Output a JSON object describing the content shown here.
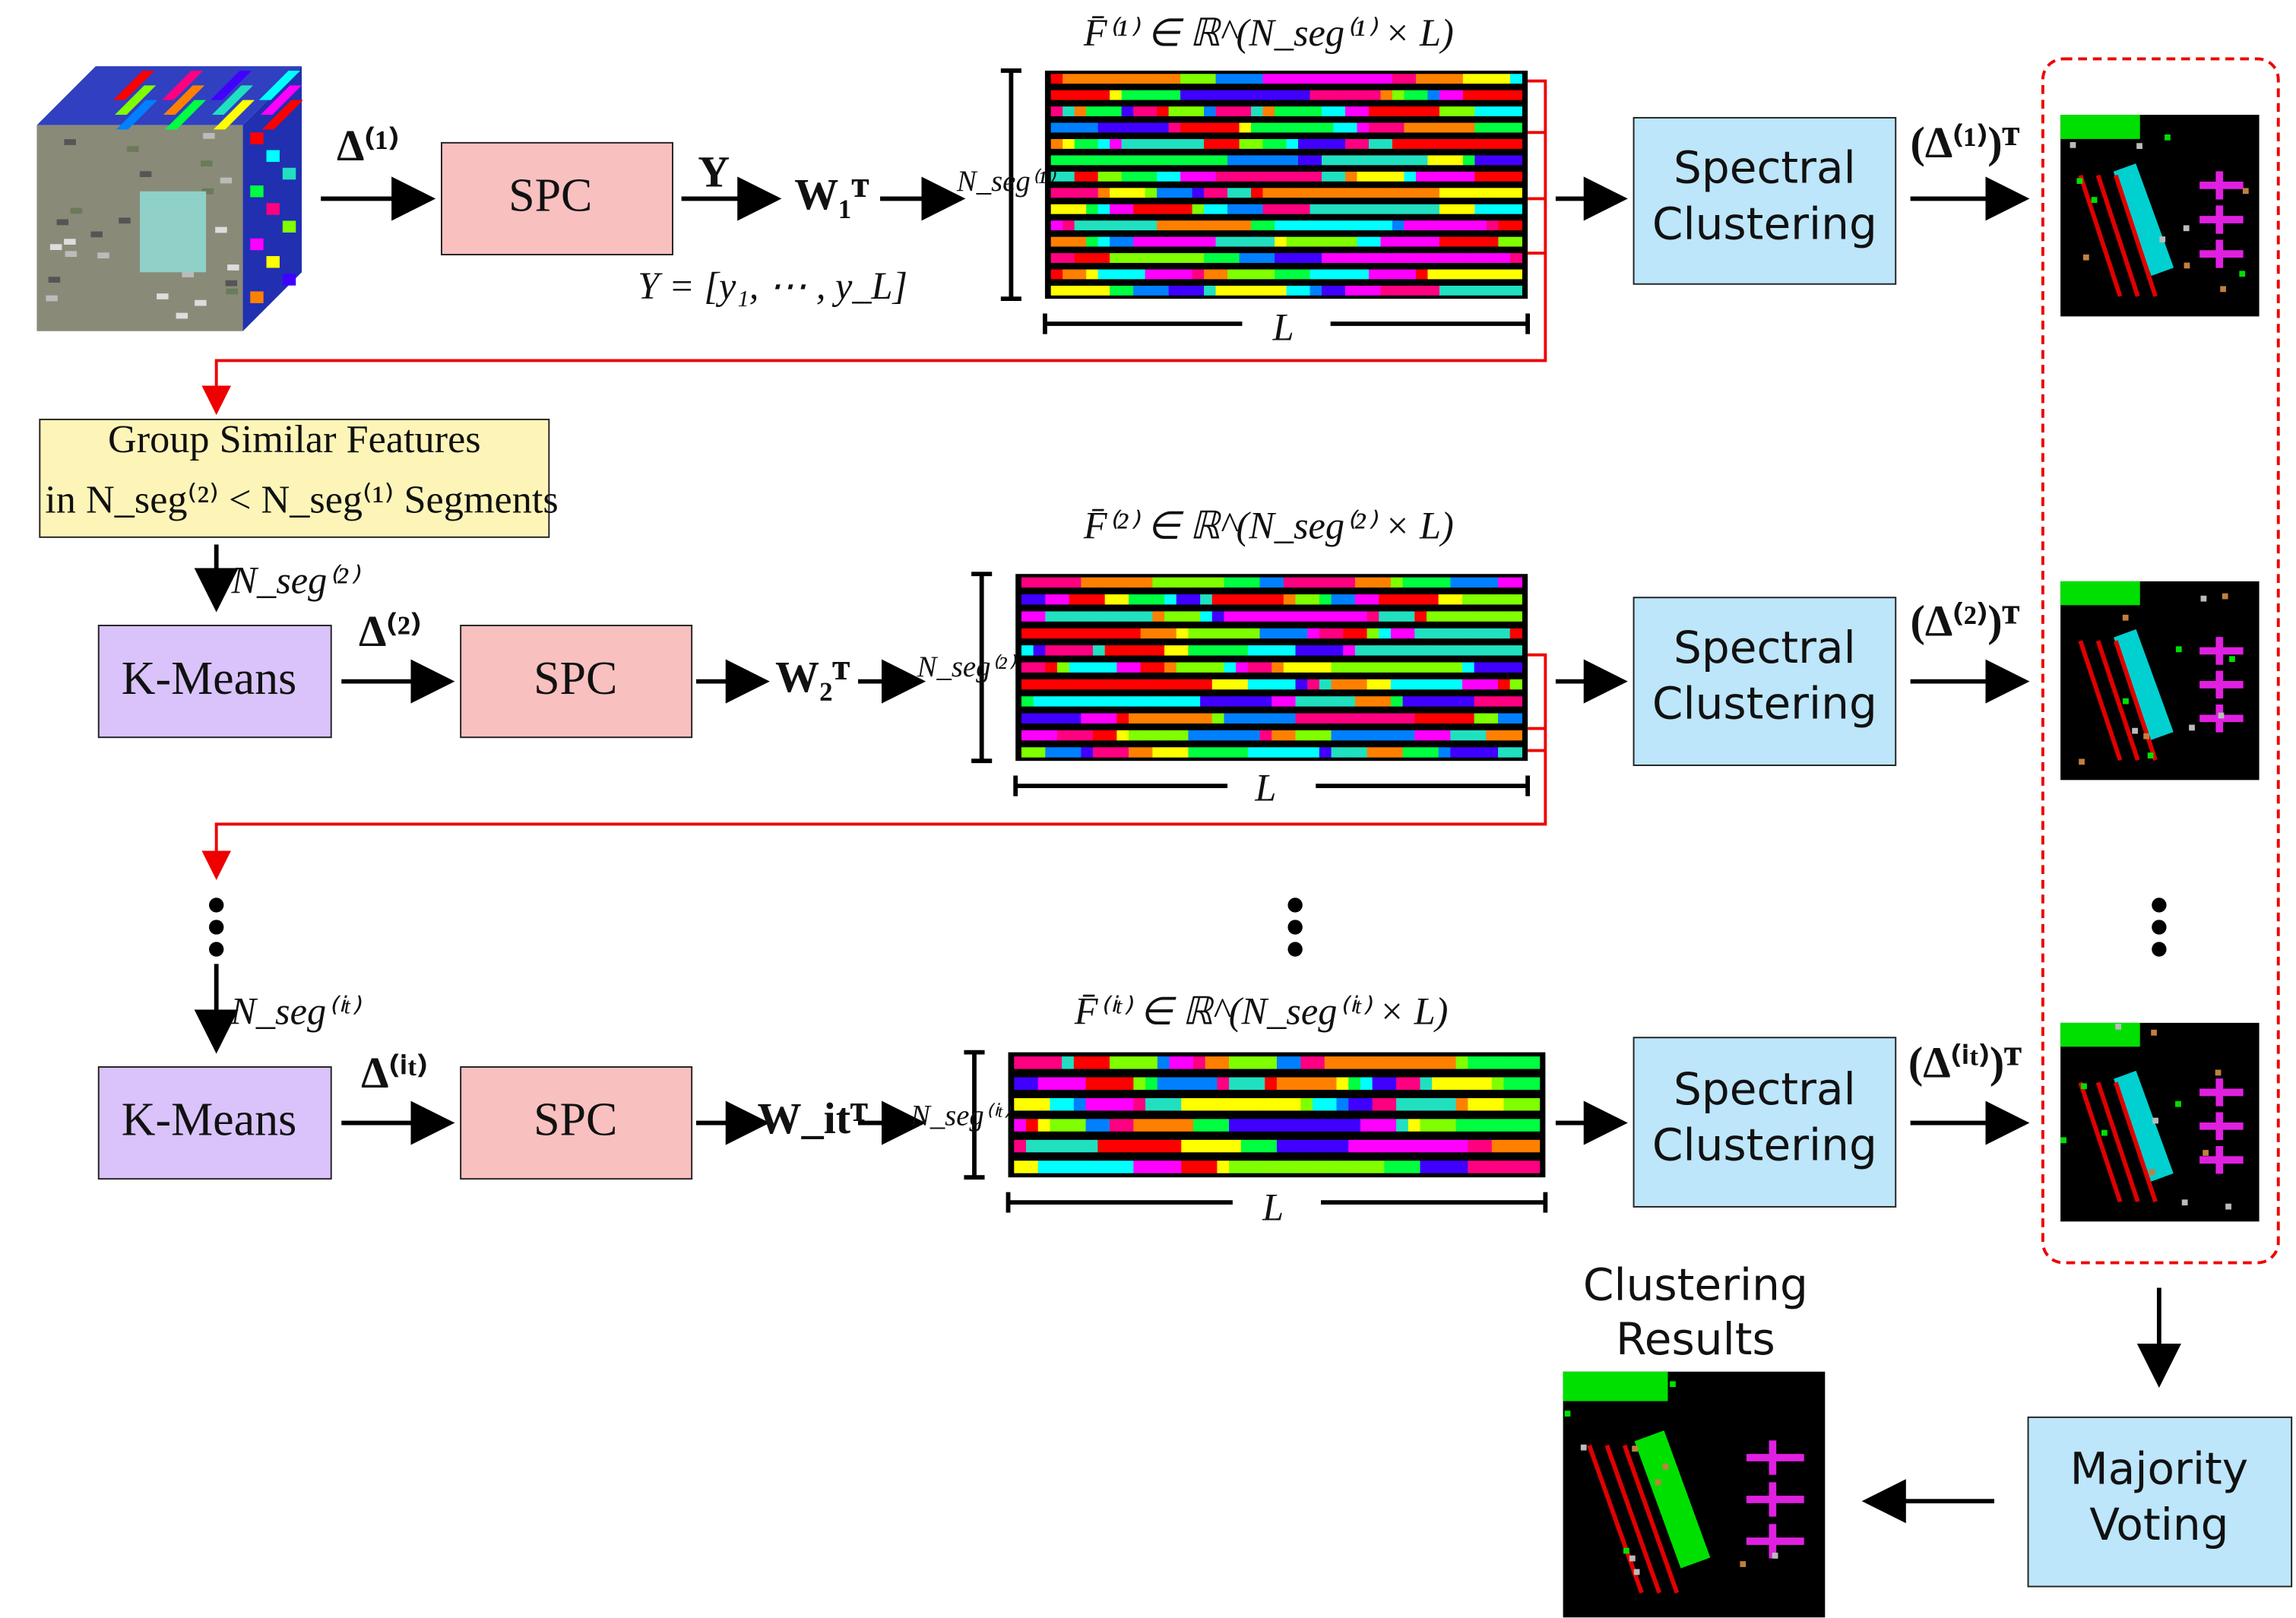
{
  "stages": [
    {
      "delta": "Δ⁽¹⁾",
      "block": "SPC",
      "output": "Y",
      "output_def": "Y = [y₁, ⋯ , y_L]",
      "weights": "W₁ᵀ",
      "n_seg": "N_seg⁽¹⁾",
      "matrix_title": "F̄⁽¹⁾ ∈ ℝ^(N_seg⁽¹⁾ × L)",
      "matrix_width": "L",
      "clustering": [
        "Spectral",
        "Clustering"
      ],
      "transpose": "(Δ⁽¹⁾)ᵀ"
    },
    {
      "n_seg_in": "N_seg⁽²⁾",
      "kmeans": "K-Means",
      "delta": "Δ⁽²⁾",
      "block": "SPC",
      "weights": "W₂ᵀ",
      "n_seg": "N_seg⁽²⁾",
      "matrix_title": "F̄⁽²⁾ ∈ ℝ^(N_seg⁽²⁾ × L)",
      "matrix_width": "L",
      "clustering": [
        "Spectral",
        "Clustering"
      ],
      "transpose": "(Δ⁽²⁾)ᵀ"
    },
    {
      "n_seg_in": "N_seg⁽ⁱᵗ⁾",
      "kmeans": "K-Means",
      "delta": "Δ⁽ⁱᵗ⁾",
      "block": "SPC",
      "weights": "W_itᵀ",
      "n_seg": "N_seg⁽ⁱᵗ⁾",
      "matrix_title": "F̄⁽ⁱᵗ⁾ ∈ ℝ^(N_seg⁽ⁱᵗ⁾ × L)",
      "matrix_width": "L",
      "clustering": [
        "Spectral",
        "Clustering"
      ],
      "transpose": "(Δ⁽ⁱᵗ⁾)ᵀ"
    }
  ],
  "grouping": [
    "Group Similar Features",
    "in N_seg⁽²⁾ < N_seg⁽¹⁾ Segments"
  ],
  "voting": [
    "Majority",
    "Voting"
  ],
  "result": [
    "Clustering",
    "Results"
  ]
}
